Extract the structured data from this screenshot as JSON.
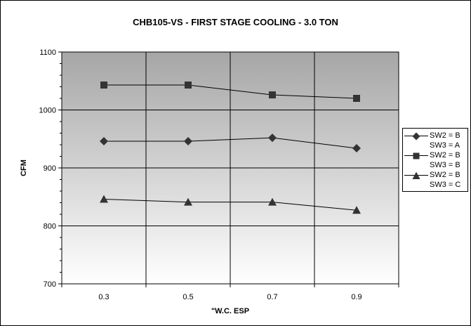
{
  "chart_data": {
    "type": "line",
    "title": "CHB105-VS - FIRST STAGE COOLING - 3.0 TON",
    "xlabel": "\"W.C. ESP",
    "ylabel": "CFM",
    "categories": [
      "0.3",
      "0.5",
      "0.7",
      "0.9"
    ],
    "ylim": [
      700,
      1100
    ],
    "yticks": [
      "700",
      "800",
      "900",
      "1000",
      "1100"
    ],
    "grid": true,
    "legend_position": "right",
    "series": [
      {
        "name_line1": "SW2 = B",
        "name_line2": "SW3 = A",
        "marker": "diamond",
        "values": [
          946,
          946,
          952,
          934
        ]
      },
      {
        "name_line1": "SW2 = B",
        "name_line2": "SW3 = B",
        "marker": "square",
        "values": [
          1043,
          1043,
          1026,
          1020
        ]
      },
      {
        "name_line1": "SW2 = B",
        "name_line2": "SW3 = C",
        "marker": "triangle",
        "values": [
          846,
          841,
          841,
          827
        ]
      }
    ]
  }
}
